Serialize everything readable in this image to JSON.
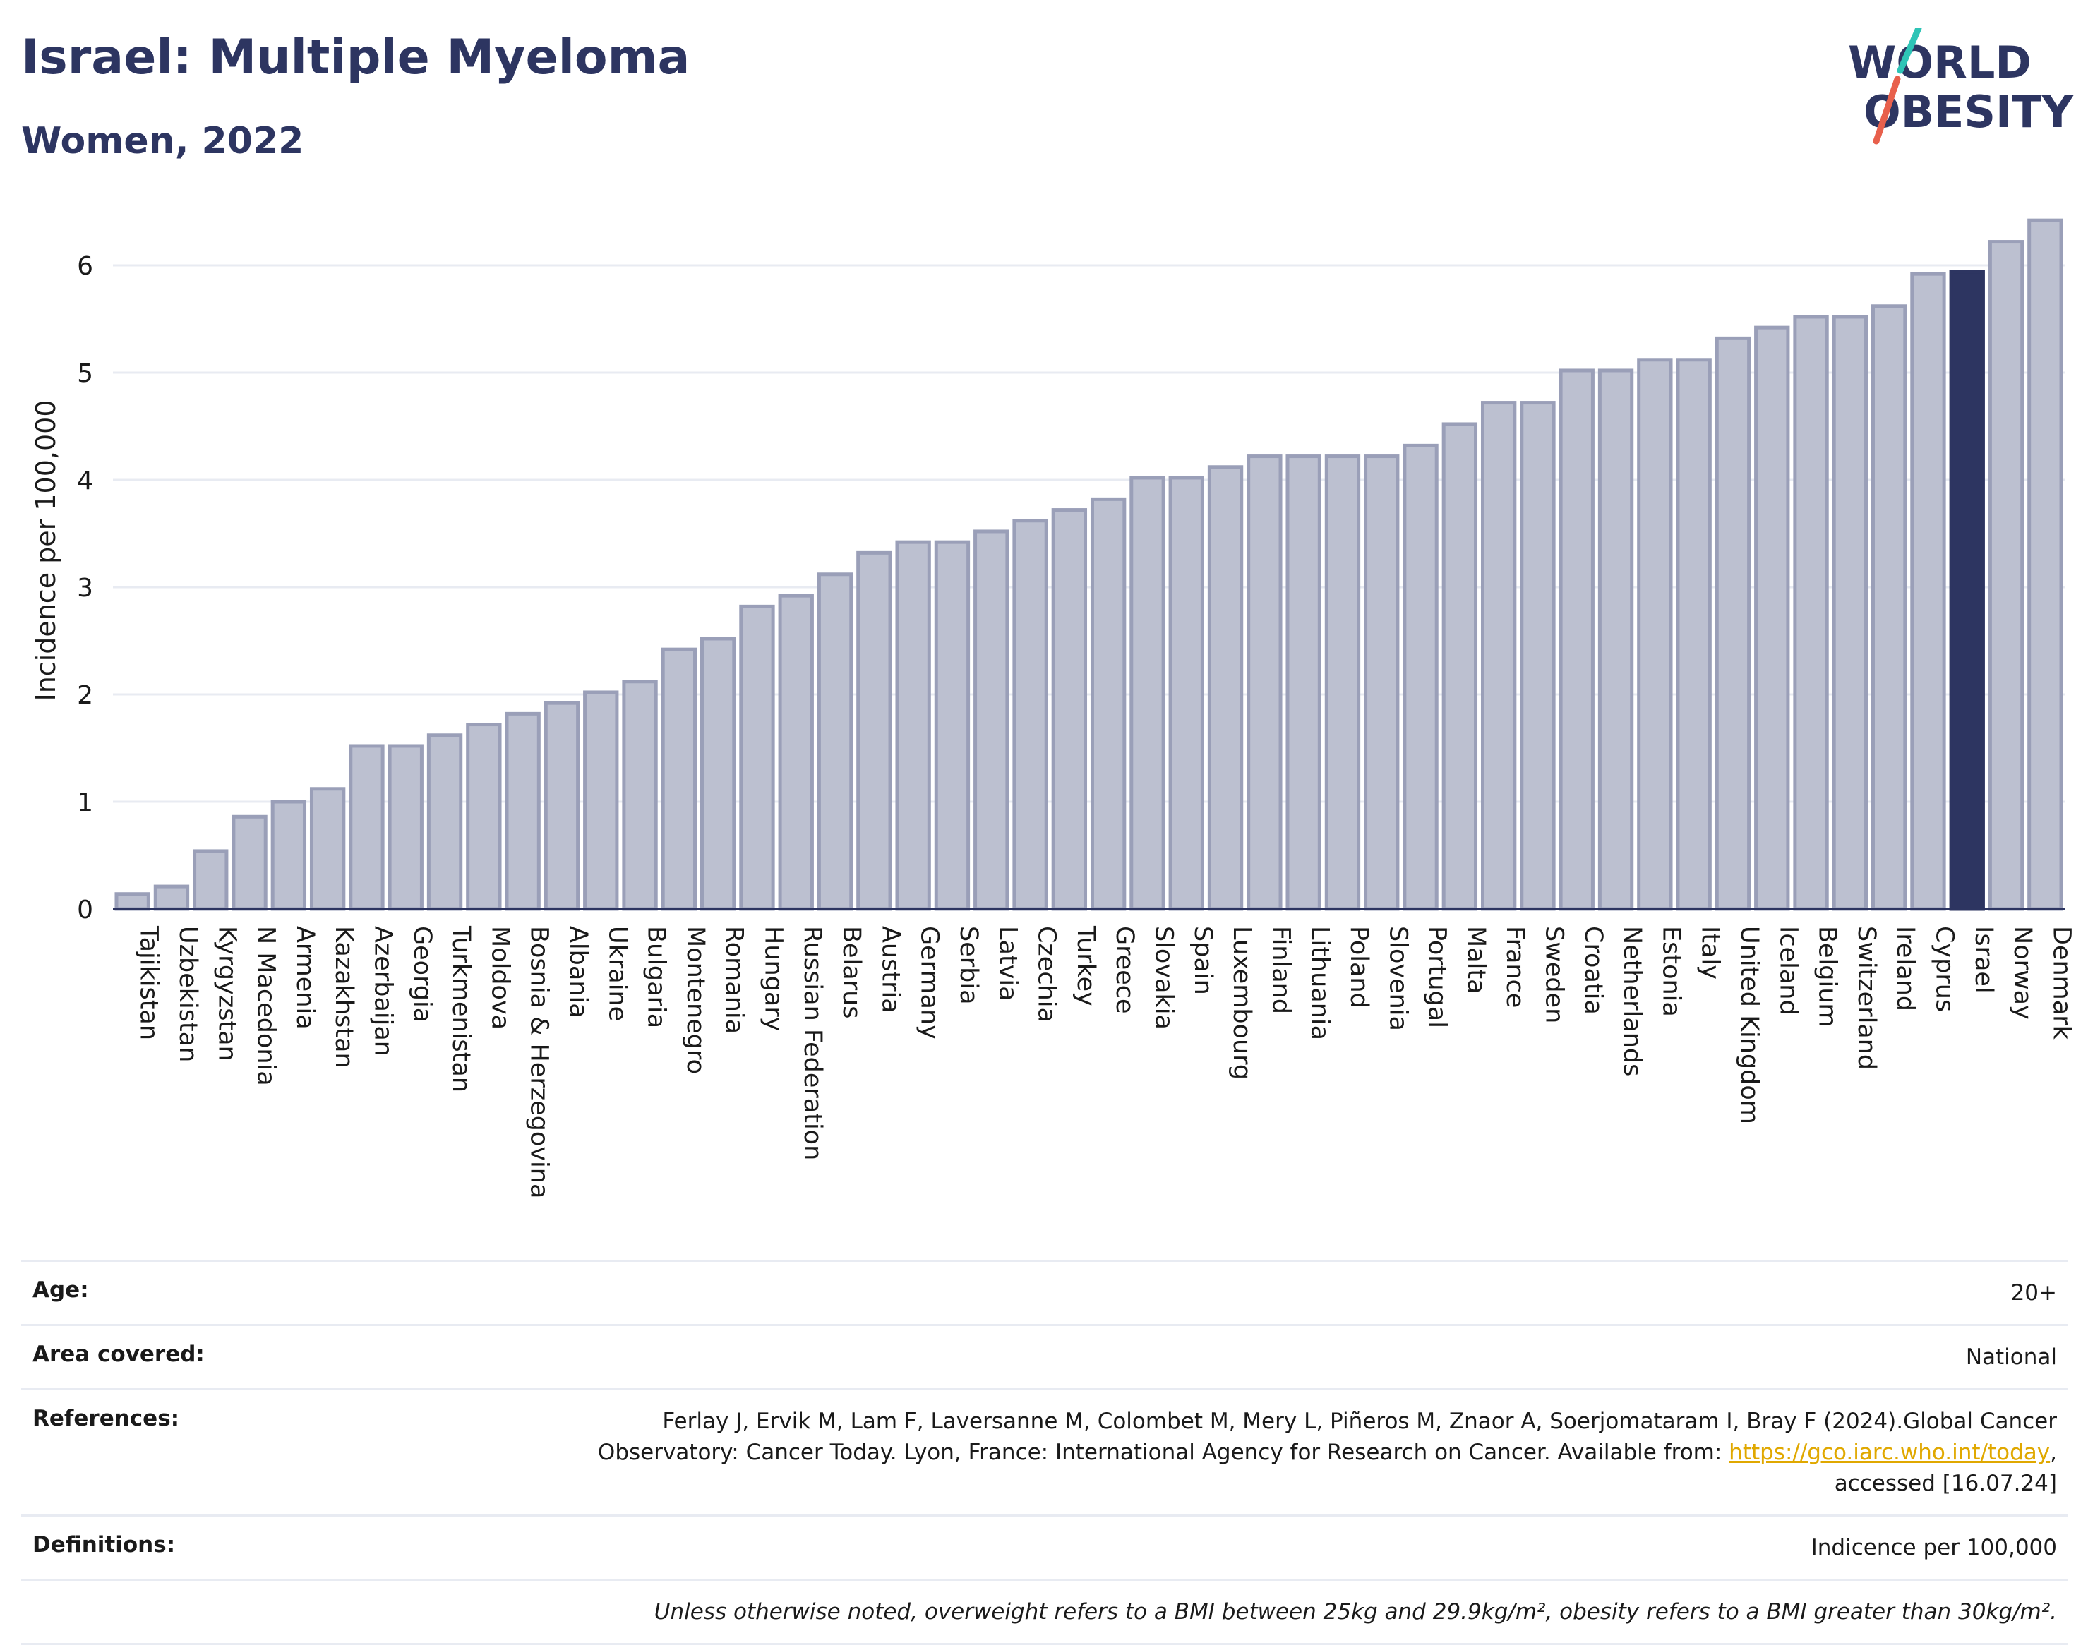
{
  "header": {
    "title": "Israel: Multiple Myeloma",
    "subtitle": "Women, 2022"
  },
  "logo": {
    "line1": "WORLD",
    "line2": "OBESITY",
    "text_color": "#2d3561",
    "slash_colors": [
      "#2ec4b6",
      "#e8604c"
    ]
  },
  "colors": {
    "bar_default": "#bcc0d0",
    "bar_border": "#9a9fb8",
    "bar_highlight": "#2d3561",
    "grid": "#e8ebf2",
    "axis": "#2d3561"
  },
  "chart_data": {
    "type": "bar",
    "ylabel": "Incidence per 100,000",
    "ylim": [
      0,
      6.5
    ],
    "yticks": [
      0,
      1,
      2,
      3,
      4,
      5,
      6
    ],
    "grid": true,
    "highlight": "Israel",
    "categories": [
      "Tajikistan",
      "Uzbekistan",
      "Kyrgyzstan",
      "N Macedonia",
      "Armenia",
      "Kazakhstan",
      "Azerbaijan",
      "Georgia",
      "Turkmenistan",
      "Moldova",
      "Bosnia & Herzegovina",
      "Albania",
      "Ukraine",
      "Bulgaria",
      "Montenegro",
      "Romania",
      "Hungary",
      "Russian Federation",
      "Belarus",
      "Austria",
      "Germany",
      "Serbia",
      "Latvia",
      "Czechia",
      "Turkey",
      "Greece",
      "Slovakia",
      "Spain",
      "Luxembourg",
      "Finland",
      "Lithuania",
      "Poland",
      "Slovenia",
      "Portugal",
      "Malta",
      "France",
      "Sweden",
      "Croatia",
      "Netherlands",
      "Estonia",
      "Italy",
      "United Kingdom",
      "Iceland",
      "Belgium",
      "Switzerland",
      "Ireland",
      "Cyprus",
      "Israel",
      "Norway",
      "Denmark"
    ],
    "values": [
      0.14,
      0.21,
      0.54,
      0.86,
      1.0,
      1.12,
      1.52,
      1.52,
      1.62,
      1.72,
      1.82,
      1.92,
      2.02,
      2.12,
      2.42,
      2.52,
      2.82,
      2.92,
      3.12,
      3.32,
      3.42,
      3.42,
      3.52,
      3.62,
      3.72,
      3.82,
      4.02,
      4.02,
      4.12,
      4.22,
      4.22,
      4.22,
      4.22,
      4.32,
      4.52,
      4.72,
      4.72,
      5.02,
      5.02,
      5.12,
      5.12,
      5.32,
      5.42,
      5.52,
      5.52,
      5.62,
      5.92,
      5.94,
      6.22,
      6.42
    ]
  },
  "info": {
    "age_label": "Age:",
    "age_value": "20+",
    "area_label": "Area covered:",
    "area_value": "National",
    "references_label": "References:",
    "references_text_1": "Ferlay J, Ervik M, Lam F, Laversanne M, Colombet M, Mery L, Piñeros M, Znaor A, Soerjomataram I, Bray F (2024).Global Cancer",
    "references_text_2": "Observatory: Cancer Today. Lyon, France: International Agency for Research on Cancer. Available from: ",
    "references_link": "https://gco.iarc.who.int/today",
    "references_text_3": ",",
    "references_text_4": "accessed [16.07.24]",
    "definitions_label": "Definitions:",
    "definitions_value": "Indicence per 100,000",
    "note": "Unless otherwise noted, overweight refers to a BMI between 25kg and 29.9kg/m², obesity refers to a BMI greater than 30kg/m²."
  }
}
